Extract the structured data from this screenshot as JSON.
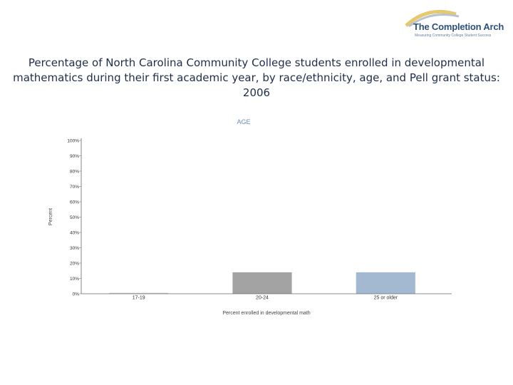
{
  "logo": {
    "name": "The Completion Arch",
    "tagline": "Measuring Community College Student Success"
  },
  "title": "Percentage of North Carolina Community College students enrolled in developmental mathematics during their first academic year, by race/ethnicity, age, and Pell grant status: 2006",
  "colors": {
    "bar_17_19": "#c8c8c8",
    "bar_20_24": "#a3a3a3",
    "bar_25_older": "#a3b9d1"
  },
  "chart_data": {
    "type": "bar",
    "title": "AGE",
    "xlabel": "Percent enrolled in developmental math",
    "ylabel": "Percent",
    "categories": [
      "17-19",
      "20-24",
      "25 or older"
    ],
    "values": [
      0,
      14,
      14
    ],
    "ylim": [
      0,
      100
    ],
    "yticks": [
      0,
      10,
      20,
      30,
      40,
      50,
      60,
      70,
      80,
      90,
      100
    ],
    "ytick_labels": [
      "0%",
      "10%",
      "20%",
      "30%",
      "40%",
      "50%",
      "60%",
      "70%",
      "80%",
      "90%",
      "100%"
    ],
    "grid": false,
    "legend": "none"
  }
}
